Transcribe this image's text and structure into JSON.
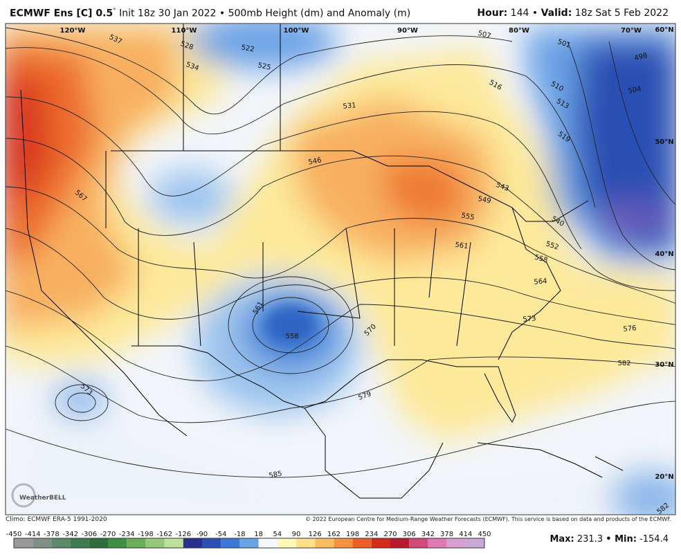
{
  "header": {
    "model": "ECMWF Ens [C] 0.5",
    "degree": "°",
    "init": "Init 18z 30 Jan 2022 • 500mb Height (dm) and Anomaly (m)",
    "hour_label": "Hour:",
    "hour": "144 •",
    "valid_label": "Valid:",
    "valid": "18z Sat 5 Feb 2022"
  },
  "map": {
    "longitude_labels": [
      "120°W",
      "110°W",
      "100°W",
      "90°W",
      "80°W",
      "70°W"
    ],
    "latitude_labels": [
      "60°N",
      "50°N",
      "40°N",
      "30°N",
      "20°N"
    ],
    "contour_labels": [
      537,
      528,
      534,
      522,
      525,
      507,
      501,
      498,
      516,
      510,
      513,
      504,
      531,
      519,
      546,
      543,
      549,
      555,
      540,
      567,
      561,
      552,
      558,
      564,
      561,
      558,
      570,
      573,
      576,
      582,
      573,
      579,
      585,
      582
    ],
    "logo": "WeatherBELL"
  },
  "footer": {
    "climo": "Climo: ECMWF ERA-5 1991-2020",
    "copyright": "© 2022 European Centre for Medium-Range Weather Forecasts (ECMWF). This service is based on data and products of the ECMWF.",
    "max_label": "Max:",
    "max": 231.3,
    "min_label": "• Min:",
    "min": -154.4
  },
  "colorbar": {
    "ticks": [
      -450,
      -414,
      -378,
      -342,
      -306,
      -270,
      -234,
      -198,
      -162,
      -126,
      -90,
      -54,
      -18,
      18,
      54,
      90,
      126,
      162,
      198,
      234,
      270,
      306,
      342,
      378,
      414,
      450
    ],
    "colors": [
      "#9a9a9a",
      "#7f8f86",
      "#5f8a6a",
      "#3f7a4f",
      "#2f6e3c",
      "#3f8f45",
      "#6aae5a",
      "#95c878",
      "#bfe09c",
      "#28328c",
      "#2c4fb4",
      "#3b78d4",
      "#6aa2e6",
      "#f4f7fb",
      "#fff8b8",
      "#fde08a",
      "#fbbc62",
      "#f5923f",
      "#ec5f28",
      "#d42a1c",
      "#b81a30",
      "#d04a7a",
      "#e07ab2",
      "#d8a0d0",
      "#c8a8d8"
    ]
  }
}
